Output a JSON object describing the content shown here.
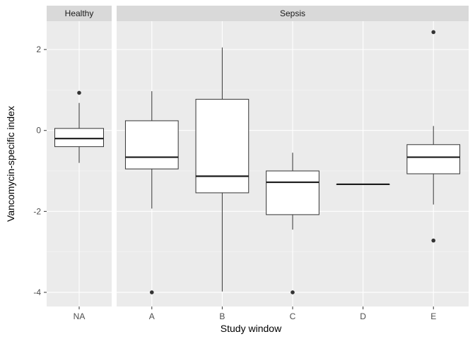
{
  "chart_data": {
    "type": "boxplot",
    "xlabel": "Study window",
    "ylabel": "Vancomycin-specific index",
    "ylim": [
      -4.35,
      2.7
    ],
    "y_ticks": [
      -4,
      -2,
      0,
      2
    ],
    "y_tick_labels": [
      "-4",
      "-2",
      "0",
      "2"
    ],
    "grid": true,
    "panels": [
      {
        "facet": "Healthy",
        "categories": [
          "NA"
        ],
        "boxes": [
          {
            "category": "NA",
            "whisker_low": -0.8,
            "q1": -0.4,
            "median": -0.2,
            "q3": 0.05,
            "whisker_high": 0.68,
            "outliers": [
              0.93
            ]
          }
        ]
      },
      {
        "facet": "Sepsis",
        "categories": [
          "A",
          "B",
          "C",
          "D",
          "E"
        ],
        "boxes": [
          {
            "category": "A",
            "whisker_low": -1.93,
            "q1": -0.95,
            "median": -0.66,
            "q3": 0.24,
            "whisker_high": 0.97,
            "outliers": [
              -4.0
            ]
          },
          {
            "category": "B",
            "whisker_low": -3.98,
            "q1": -1.54,
            "median": -1.13,
            "q3": 0.77,
            "whisker_high": 2.05,
            "outliers": []
          },
          {
            "category": "C",
            "whisker_low": -2.45,
            "q1": -2.08,
            "median": -1.28,
            "q3": -1.0,
            "whisker_high": -0.55,
            "outliers": [
              -4.0
            ]
          },
          {
            "category": "D",
            "whisker_low": -1.33,
            "q1": -1.33,
            "median": -1.33,
            "q3": -1.33,
            "whisker_high": -1.33,
            "outliers": []
          },
          {
            "category": "E",
            "whisker_low": -1.83,
            "q1": -1.07,
            "median": -0.66,
            "q3": -0.35,
            "whisker_high": 0.11,
            "outliers": [
              2.43,
              -2.72
            ]
          }
        ]
      }
    ]
  }
}
